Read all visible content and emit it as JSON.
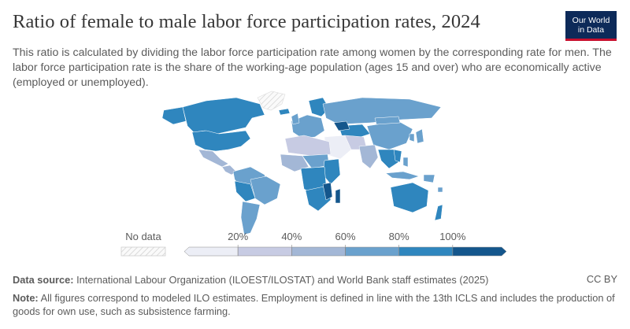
{
  "header": {
    "title": "Ratio of female to male labor force participation rates, 2024",
    "subtitle": "This ratio is calculated by dividing the labor force participation rate among women by the corresponding rate for men. The labor force participation rate is the share of the working-age population (ages 15 and over) who are economically active (employed or unemployed).",
    "logo_line1": "Our World",
    "logo_line2": "in Data"
  },
  "legend": {
    "no_data_label": "No data",
    "ticks": [
      "20%",
      "40%",
      "60%",
      "80%",
      "100%"
    ],
    "bins": [
      {
        "color": "#eceef6"
      },
      {
        "color": "#c7cbe3"
      },
      {
        "color": "#a3b7d6"
      },
      {
        "color": "#6aa1cd"
      },
      {
        "color": "#2f86be"
      },
      {
        "color": "#14568c"
      }
    ]
  },
  "map": {
    "colors": {
      "no_data": "#f2f2f2",
      "low": "#c7cbe3",
      "mid": "#a3b7d6",
      "high": "#6aa1cd",
      "higher": "#2f86be",
      "top": "#14568c"
    }
  },
  "footer": {
    "source_label": "Data source:",
    "source_text": "International Labour Organization (ILOEST/ILOSTAT) and World Bank staff estimates (2025)",
    "license": "CC BY",
    "note_label": "Note:",
    "note_text": "All figures correspond to modeled ILO estimates. Employment is defined in line with the 13th ICLS and includes the production of goods for own use, such as subsistence farming."
  }
}
